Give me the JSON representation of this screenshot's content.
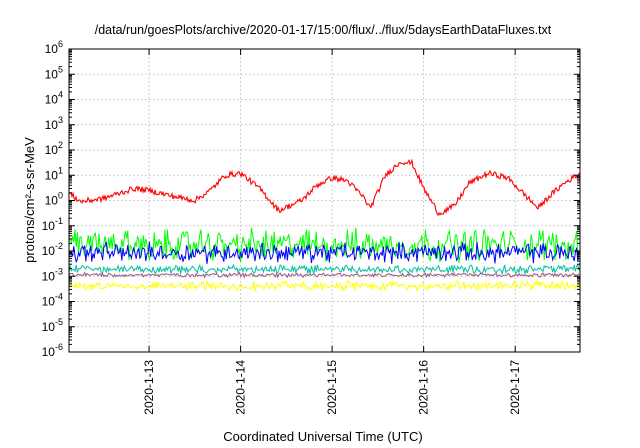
{
  "chart_data": {
    "type": "line",
    "title": "/data/run/goesPlots/archive/2020-01-17/15:00/flux/../flux/5daysEarthDataFluxes.txt",
    "xlabel": "Coordinated Universal Time (UTC)",
    "ylabel": "protons/cm²-s-sr-MeV",
    "y_scale": "log",
    "ylim": [
      1e-06,
      1000000.0
    ],
    "y_ticks": [
      {
        "exp": "-6",
        "value": 1e-06
      },
      {
        "exp": "-5",
        "value": 1e-05
      },
      {
        "exp": "-4",
        "value": 0.0001
      },
      {
        "exp": "-3",
        "value": 0.001
      },
      {
        "exp": "-2",
        "value": 0.01
      },
      {
        "exp": "-1",
        "value": 0.1
      },
      {
        "exp": "0",
        "value": 1
      },
      {
        "exp": "1",
        "value": 10.0
      },
      {
        "exp": "2",
        "value": 100.0
      },
      {
        "exp": "3",
        "value": 1000.0
      },
      {
        "exp": "4",
        "value": 10000.0
      },
      {
        "exp": "5",
        "value": 100000.0
      },
      {
        "exp": "6",
        "value": 1000000.0
      }
    ],
    "xlim": [
      "2020-01-12 03:00",
      "2020-01-17 17:00"
    ],
    "x_ticks": [
      "2020-1-13",
      "2020-1-14",
      "2020-1-15",
      "2020-1-16",
      "2020-1-17"
    ],
    "grid": true,
    "series": [
      {
        "color": "#ff0000",
        "x": [
          "2020-01-12 03:00",
          "2020-01-12 06:00",
          "2020-01-12 12:00",
          "2020-01-12 20:00",
          "2020-01-13 00:00",
          "2020-01-13 06:00",
          "2020-01-13 12:00",
          "2020-01-13 16:00",
          "2020-01-13 20:00",
          "2020-01-14 00:00",
          "2020-01-14 05:00",
          "2020-01-14 10:00",
          "2020-01-14 16:00",
          "2020-01-14 20:00",
          "2020-01-15 00:00",
          "2020-01-15 04:00",
          "2020-01-15 08:00",
          "2020-01-15 10:00",
          "2020-01-15 14:00",
          "2020-01-15 18:00",
          "2020-01-15 21:00",
          "2020-01-16 00:00",
          "2020-01-16 04:00",
          "2020-01-16 08:00",
          "2020-01-16 12:00",
          "2020-01-16 17:00",
          "2020-01-16 22:00",
          "2020-01-17 02:00",
          "2020-01-17 06:00",
          "2020-01-17 09:00",
          "2020-01-17 13:00",
          "2020-01-17 17:00"
        ],
        "values": [
          2,
          0.9,
          1.2,
          3,
          2.5,
          1.5,
          1,
          2.5,
          10,
          12,
          3,
          0.4,
          1,
          4,
          8,
          6,
          1.5,
          0.5,
          10,
          35,
          30,
          3,
          0.3,
          0.6,
          5,
          12,
          8,
          2,
          0.5,
          1.5,
          5,
          12
        ]
      },
      {
        "color": "#00ff00",
        "x": [
          "2020-01-12 03:00",
          "2020-01-17 17:00"
        ],
        "values": [
          0.012,
          0.012
        ],
        "range": [
          0.003,
          0.1
        ]
      },
      {
        "color": "#0000ff",
        "x": [
          "2020-01-12 03:00",
          "2020-01-17 17:00"
        ],
        "values": [
          0.008,
          0.008
        ],
        "range": [
          0.003,
          0.025
        ]
      },
      {
        "color": "#00c0a0",
        "x": [
          "2020-01-12 03:00",
          "2020-01-17 17:00"
        ],
        "values": [
          0.002,
          0.002
        ],
        "range": [
          0.0012,
          0.003
        ]
      },
      {
        "color": "#a05080",
        "x": [
          "2020-01-12 03:00",
          "2020-01-17 17:00"
        ],
        "values": [
          0.0012,
          0.0012
        ],
        "range": [
          0.0009,
          0.0014
        ]
      },
      {
        "color": "#ffff00",
        "x": [
          "2020-01-12 03:00",
          "2020-01-17 17:00"
        ],
        "values": [
          0.0004,
          0.0004
        ],
        "range": [
          0.00025,
          0.0007
        ]
      }
    ]
  }
}
